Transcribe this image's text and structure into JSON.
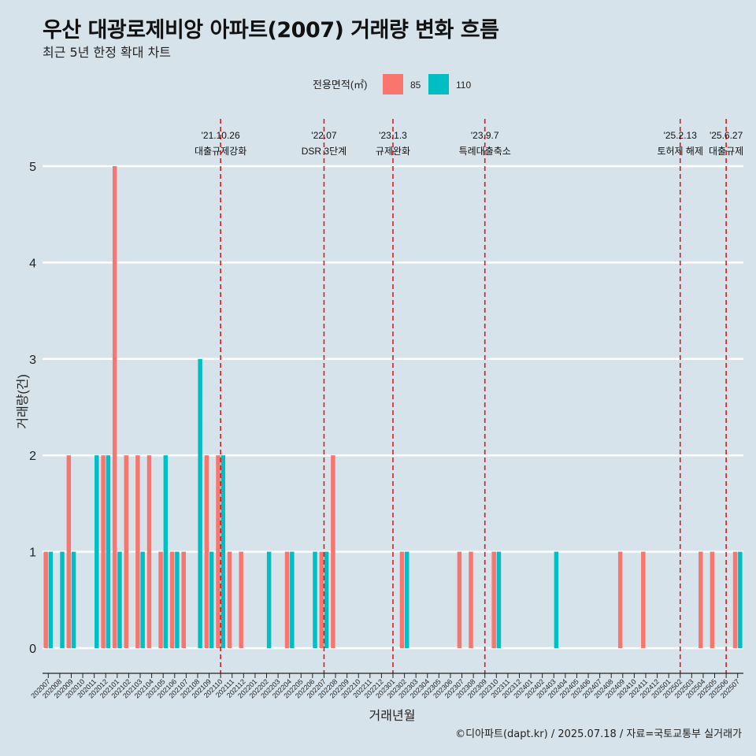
{
  "title": "우산 대광로제비앙 아파트(2007) 거래량 변화 흐름",
  "subtitle": "최근 5년 한정 확대 차트",
  "caption": "©디아파트(dapt.kr) / 2025.07.18 / 자료=국토교통부 실거래가",
  "colors": {
    "background": "#d6e3ea",
    "grid": "#ffffff",
    "event_line": "#e0191b",
    "series_85": "#f8766d",
    "series_110": "#00bfc4"
  },
  "chart_data": {
    "type": "bar",
    "xlabel": "거래년월",
    "ylabel": "거래량(건)",
    "ylim": [
      0,
      5
    ],
    "yticks": [
      0,
      1,
      2,
      3,
      4,
      5
    ],
    "grid": true,
    "legend": {
      "title": "전용면적(㎡)",
      "position": "top",
      "entries": [
        "85",
        "110"
      ]
    },
    "categories": [
      "202007",
      "202008",
      "202009",
      "202010",
      "202011",
      "202012",
      "202101",
      "202102",
      "202103",
      "202104",
      "202105",
      "202106",
      "202107",
      "202108",
      "202109",
      "202110",
      "202111",
      "202112",
      "202201",
      "202202",
      "202203",
      "202204",
      "202205",
      "202206",
      "202207",
      "202208",
      "202209",
      "202210",
      "202211",
      "202212",
      "202301",
      "202302",
      "202303",
      "202304",
      "202305",
      "202306",
      "202307",
      "202308",
      "202309",
      "202310",
      "202311",
      "202312",
      "202401",
      "202402",
      "202403",
      "202404",
      "202405",
      "202406",
      "202407",
      "202408",
      "202409",
      "202410",
      "202411",
      "202412",
      "202501",
      "202502",
      "202503",
      "202504",
      "202505",
      "202506",
      "202507"
    ],
    "series": [
      {
        "name": "85",
        "values": [
          1,
          0,
          2,
          0,
          0,
          2,
          5,
          2,
          2,
          2,
          1,
          1,
          1,
          0,
          2,
          2,
          1,
          1,
          0,
          0,
          0,
          1,
          0,
          0,
          1,
          2,
          0,
          0,
          0,
          0,
          0,
          1,
          0,
          0,
          0,
          0,
          1,
          1,
          0,
          1,
          0,
          0,
          0,
          0,
          0,
          0,
          0,
          0,
          0,
          0,
          1,
          0,
          1,
          0,
          0,
          0,
          0,
          1,
          1,
          0,
          1
        ]
      },
      {
        "name": "110",
        "values": [
          1,
          1,
          1,
          0,
          2,
          2,
          1,
          0,
          1,
          0,
          2,
          1,
          0,
          3,
          1,
          2,
          0,
          0,
          0,
          1,
          0,
          1,
          0,
          1,
          1,
          0,
          0,
          0,
          0,
          0,
          0,
          1,
          0,
          0,
          0,
          0,
          0,
          0,
          0,
          1,
          0,
          0,
          0,
          0,
          1,
          0,
          0,
          0,
          0,
          0,
          0,
          0,
          0,
          0,
          0,
          0,
          0,
          0,
          0,
          0,
          1
        ]
      }
    ],
    "events": [
      {
        "date": "'21.10.26",
        "label": "대출규제강화",
        "month": "202110"
      },
      {
        "date": "'22.07",
        "label": "DSR 3단계",
        "month": "202207"
      },
      {
        "date": "'23.1.3",
        "label": "규제완화",
        "month": "202301"
      },
      {
        "date": "'23.9.7",
        "label": "특례대출축소",
        "month": "202309"
      },
      {
        "date": "'25.2.13",
        "label": "토허제 해제",
        "month": "202502"
      },
      {
        "date": "'25.6.27",
        "label": "대출규제",
        "month": "202506"
      }
    ]
  }
}
